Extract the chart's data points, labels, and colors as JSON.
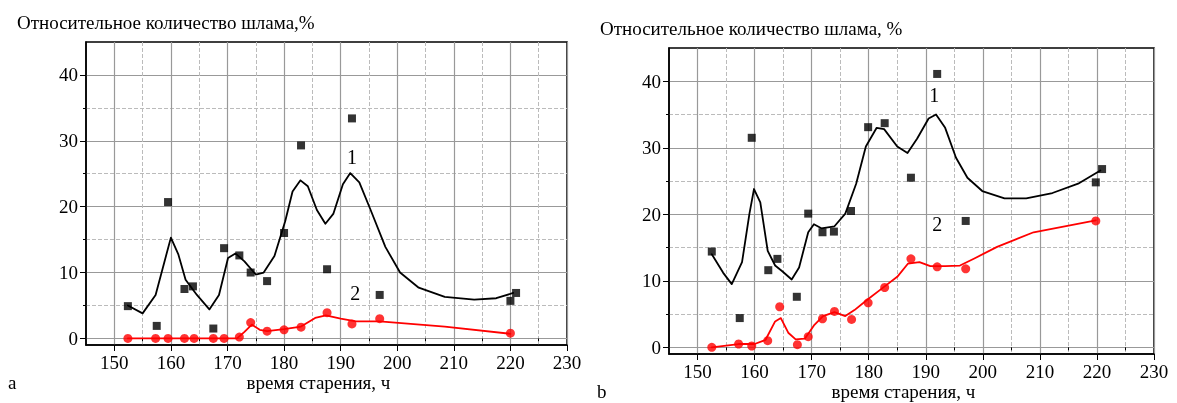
{
  "chart_data": [
    {
      "type": "scatter",
      "title": "Относительное количество шлама,%",
      "xlabel": "время старения, ч",
      "annotations": [
        "a",
        "1",
        "2"
      ],
      "xlim": [
        145,
        230
      ],
      "ylim": [
        -1,
        45
      ],
      "xticks": [
        150,
        {
          "value": 155,
          "label": null
        },
        160,
        {
          "value": 165,
          "label": null
        },
        170,
        {
          "value": 175,
          "label": null
        },
        180,
        {
          "value": 185,
          "label": null
        },
        190,
        {
          "value": 195,
          "label": null
        },
        200,
        {
          "value": 205,
          "label": null
        },
        210,
        {
          "value": 215,
          "label": null
        },
        220,
        {
          "value": 225,
          "label": null
        },
        230
      ],
      "yticks": [
        0,
        {
          "value": 5,
          "label": null
        },
        10,
        {
          "value": 15,
          "label": null
        },
        20,
        {
          "value": 25,
          "label": null
        },
        30,
        {
          "value": 35,
          "label": null
        },
        40
      ],
      "grid": true,
      "series": [
        {
          "marker": "square",
          "color": "#000000",
          "x": [
            152.4,
            157.5,
            159.5,
            162.4,
            163.9,
            167.5,
            169.4,
            172.1,
            174.1,
            177.0,
            180.0,
            183.0,
            187.6,
            192.0,
            196.9,
            220.0,
            221.0
          ],
          "values": [
            4.9,
            1.9,
            20.7,
            7.5,
            7.9,
            1.5,
            13.7,
            12.6,
            10.0,
            8.7,
            16.0,
            29.3,
            10.5,
            33.4,
            6.6,
            5.7,
            6.9
          ]
        },
        {
          "type": "line",
          "marker": "none",
          "line_style": "solid",
          "color": "#000000",
          "x": [
            152.4,
            155,
            157.3,
            160,
            161.3,
            162.6,
            164.6,
            166.8,
            168.5,
            170.1,
            171.4,
            173,
            175,
            176.4,
            178.3,
            180.2,
            181.5,
            182.9,
            184.2,
            185.8,
            187.3,
            188.7,
            190.4,
            191.7,
            193.3,
            195.3,
            197.9,
            200.5,
            203.8,
            208.4,
            213.6,
            217.5,
            220.5
          ],
          "values": [
            5.0,
            3.8,
            6.6,
            15.3,
            12.8,
            8.9,
            6.6,
            4.4,
            6.6,
            12.2,
            12.9,
            11.7,
            9.7,
            10.0,
            12.5,
            17.8,
            22.3,
            24.0,
            23.1,
            19.5,
            17.4,
            18.9,
            23.4,
            25.1,
            23.7,
            19.5,
            13.9,
            10.0,
            7.7,
            6.3,
            5.9,
            6.1,
            6.9
          ]
        },
        {
          "marker": "circle",
          "color": "#ff0000",
          "x": [
            152.4,
            157.3,
            159.5,
            162.4,
            164.1,
            167.5,
            169.4,
            172.1,
            174.1,
            177.0,
            180.0,
            183.0,
            187.6,
            192.0,
            196.9,
            220.0
          ],
          "values": [
            0,
            0,
            0,
            0,
            0,
            0,
            0,
            0.2,
            2.4,
            1.1,
            1.3,
            1.7,
            3.9,
            2.2,
            3.0,
            0.8
          ]
        },
        {
          "type": "line",
          "marker": "none",
          "line_style": "solid",
          "color": "#ff0000",
          "x": [
            152.4,
            171.7,
            173,
            174.3,
            175.7,
            177,
            180,
            183,
            185.5,
            187.4,
            190,
            192.7,
            196.9,
            208.4,
            220
          ],
          "values": [
            0,
            0,
            1,
            2.1,
            1.3,
            1.1,
            1.4,
            1.8,
            3.1,
            3.5,
            3.0,
            2.6,
            2.6,
            1.8,
            0.7
          ]
        }
      ]
    },
    {
      "type": "scatter",
      "title": "Относительное количество шлама, %",
      "xlabel": "время старения, ч",
      "annotations": [
        "b",
        "1",
        "2"
      ],
      "xlim": [
        145,
        230
      ],
      "ylim": [
        -1,
        45
      ],
      "xticks": [
        150,
        {
          "value": 155,
          "label": null
        },
        160,
        {
          "value": 165,
          "label": null
        },
        170,
        {
          "value": 175,
          "label": null
        },
        180,
        {
          "value": 185,
          "label": null
        },
        190,
        {
          "value": 195,
          "label": null
        },
        200,
        {
          "value": 205,
          "label": null
        },
        210,
        {
          "value": 215,
          "label": null
        },
        220,
        {
          "value": 225,
          "label": null
        },
        230
      ],
      "yticks": [
        0,
        {
          "value": 5,
          "label": null
        },
        10,
        {
          "value": 15,
          "label": null
        },
        20,
        {
          "value": 25,
          "label": null
        },
        30,
        {
          "value": 35,
          "label": null
        },
        40
      ],
      "grid": true,
      "series": [
        {
          "marker": "square",
          "color": "#000000",
          "x": [
            152.5,
            157.4,
            159.5,
            162.4,
            164.0,
            167.4,
            169.4,
            171.9,
            173.9,
            176.9,
            179.9,
            182.8,
            187.4,
            192.0,
            197.0,
            219.8,
            220.9
          ],
          "values": [
            14.4,
            4.4,
            31.5,
            11.6,
            13.3,
            7.6,
            20.1,
            17.3,
            17.4,
            20.5,
            33.1,
            33.7,
            25.5,
            41.1,
            19.0,
            24.8,
            26.8
          ]
        },
        {
          "type": "line",
          "marker": "none",
          "line_style": "solid",
          "color": "#000000",
          "x": [
            152.5,
            154.5,
            156,
            157.8,
            159.1,
            159.9,
            161,
            162.3,
            163.6,
            164.9,
            166.5,
            167.8,
            169.4,
            170.4,
            171.7,
            174,
            175.9,
            177.8,
            179.5,
            181.4,
            182.7,
            185,
            186.8,
            188.5,
            190.5,
            191.8,
            193.4,
            195.3,
            197.3,
            199.9,
            203.8,
            207.6,
            212.2,
            216.7,
            220.6
          ],
          "values": [
            14.0,
            11.2,
            9.5,
            12.8,
            20.1,
            23.8,
            21.8,
            14.5,
            12.3,
            11.4,
            10.2,
            12.0,
            17.3,
            18.5,
            17.9,
            18.2,
            20.1,
            24.6,
            30.2,
            33.0,
            32.8,
            30.2,
            29.2,
            31.4,
            34.4,
            35.0,
            33.0,
            28.5,
            25.5,
            23.5,
            22.4,
            22.4,
            23.2,
            24.6,
            26.6
          ]
        },
        {
          "marker": "circle",
          "color": "#ff0000",
          "x": [
            152.5,
            157.2,
            159.5,
            162.3,
            164.4,
            167.5,
            169.4,
            171.9,
            174.0,
            177.0,
            179.9,
            182.8,
            187.4,
            192.0,
            197.0,
            219.8
          ],
          "values": [
            0,
            0.5,
            0.2,
            1.0,
            6.1,
            0.4,
            1.6,
            4.3,
            5.4,
            4.2,
            6.7,
            9.0,
            13.3,
            12.1,
            11.8,
            19.0
          ]
        },
        {
          "type": "line",
          "marker": "none",
          "line_style": "solid",
          "color": "#ff0000",
          "x": [
            152.5,
            157.2,
            160,
            161.9,
            163.6,
            164.6,
            165.9,
            167.2,
            168.8,
            170.4,
            172,
            174,
            175.9,
            177.5,
            179.8,
            182.4,
            185,
            186.9,
            188.9,
            190.8,
            193.4,
            196,
            198.6,
            202.5,
            208.9,
            219.8
          ],
          "values": [
            0,
            0.5,
            0.5,
            1.1,
            3.9,
            4.4,
            2.2,
            1.2,
            1.3,
            3.3,
            4.7,
            5.3,
            4.7,
            5.6,
            7.2,
            8.9,
            10.6,
            12.6,
            12.8,
            12.2,
            12.2,
            12.3,
            13.4,
            15.1,
            17.3,
            19.1
          ]
        }
      ]
    }
  ]
}
